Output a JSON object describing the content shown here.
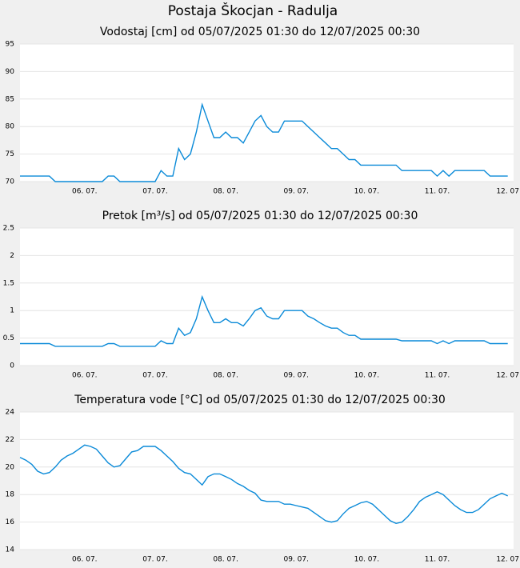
{
  "title": "Postaja Škocjan - Radulja",
  "chart_data": [
    {
      "type": "line",
      "title": "Vodostaj [cm] od 05/07/2025 01:30 do 12/07/2025 00:30",
      "categories": [
        null,
        null,
        null,
        null,
        null,
        null,
        null,
        null,
        null,
        null,
        null,
        "06. 07.",
        null,
        null,
        null,
        null,
        null,
        null,
        null,
        null,
        null,
        null,
        null,
        "07. 07.",
        null,
        null,
        null,
        null,
        null,
        null,
        null,
        null,
        null,
        null,
        null,
        "08. 07.",
        null,
        null,
        null,
        null,
        null,
        null,
        null,
        null,
        null,
        null,
        null,
        "09. 07.",
        null,
        null,
        null,
        null,
        null,
        null,
        null,
        null,
        null,
        null,
        null,
        "10. 07.",
        null,
        null,
        null,
        null,
        null,
        null,
        null,
        null,
        null,
        null,
        null,
        "11. 07.",
        null,
        null,
        null,
        null,
        null,
        null,
        null,
        null,
        null,
        null,
        null,
        "12. 07"
      ],
      "values": [
        71,
        71,
        71,
        71,
        71,
        71,
        70,
        70,
        70,
        70,
        70,
        70,
        70,
        70,
        70,
        71,
        71,
        70,
        70,
        70,
        70,
        70,
        70,
        70,
        72,
        71,
        71,
        76,
        74,
        75,
        79,
        84,
        81,
        78,
        78,
        79,
        78,
        78,
        77,
        79,
        81,
        82,
        80,
        79,
        79,
        81,
        81,
        81,
        81,
        80,
        79,
        78,
        77,
        76,
        76,
        75,
        74,
        74,
        73,
        73,
        73,
        73,
        73,
        73,
        73,
        72,
        72,
        72,
        72,
        72,
        72,
        71,
        72,
        71,
        72,
        72,
        72,
        72,
        72,
        72,
        71,
        71,
        71,
        71
      ],
      "color": "#0a8ad8",
      "ylim": [
        70,
        95
      ],
      "yticks": [
        70,
        75,
        80,
        85,
        90,
        95
      ],
      "grid": true
    },
    {
      "type": "line",
      "title": "Pretok [m³/s] od 05/07/2025 01:30 do 12/07/2025 00:30",
      "categories": [
        null,
        null,
        null,
        null,
        null,
        null,
        null,
        null,
        null,
        null,
        null,
        "06. 07.",
        null,
        null,
        null,
        null,
        null,
        null,
        null,
        null,
        null,
        null,
        null,
        "07. 07.",
        null,
        null,
        null,
        null,
        null,
        null,
        null,
        null,
        null,
        null,
        null,
        "08. 07.",
        null,
        null,
        null,
        null,
        null,
        null,
        null,
        null,
        null,
        null,
        null,
        "09. 07.",
        null,
        null,
        null,
        null,
        null,
        null,
        null,
        null,
        null,
        null,
        null,
        "10. 07.",
        null,
        null,
        null,
        null,
        null,
        null,
        null,
        null,
        null,
        null,
        null,
        "11. 07.",
        null,
        null,
        null,
        null,
        null,
        null,
        null,
        null,
        null,
        null,
        null,
        "12. 07"
      ],
      "values": [
        0.4,
        0.4,
        0.4,
        0.4,
        0.4,
        0.4,
        0.35,
        0.35,
        0.35,
        0.35,
        0.35,
        0.35,
        0.35,
        0.35,
        0.35,
        0.4,
        0.4,
        0.35,
        0.35,
        0.35,
        0.35,
        0.35,
        0.35,
        0.35,
        0.45,
        0.4,
        0.4,
        0.68,
        0.55,
        0.6,
        0.85,
        1.25,
        1.0,
        0.78,
        0.78,
        0.85,
        0.78,
        0.78,
        0.72,
        0.85,
        1.0,
        1.05,
        0.9,
        0.85,
        0.85,
        1.0,
        1.0,
        1.0,
        1.0,
        0.9,
        0.85,
        0.78,
        0.72,
        0.68,
        0.68,
        0.6,
        0.55,
        0.55,
        0.48,
        0.48,
        0.48,
        0.48,
        0.48,
        0.48,
        0.48,
        0.45,
        0.45,
        0.45,
        0.45,
        0.45,
        0.45,
        0.4,
        0.45,
        0.4,
        0.45,
        0.45,
        0.45,
        0.45,
        0.45,
        0.45,
        0.4,
        0.4,
        0.4,
        0.4
      ],
      "color": "#0a8ad8",
      "ylim": [
        0,
        2.5
      ],
      "yticks": [
        0,
        0.5,
        1,
        1.5,
        2,
        2.5
      ],
      "grid": true
    },
    {
      "type": "line",
      "title": "Temperatura vode [°C] od 05/07/2025 01:30 do 12/07/2025 00:30",
      "categories": [
        null,
        null,
        null,
        null,
        null,
        null,
        null,
        null,
        null,
        null,
        null,
        "06. 07.",
        null,
        null,
        null,
        null,
        null,
        null,
        null,
        null,
        null,
        null,
        null,
        "07. 07.",
        null,
        null,
        null,
        null,
        null,
        null,
        null,
        null,
        null,
        null,
        null,
        "08. 07.",
        null,
        null,
        null,
        null,
        null,
        null,
        null,
        null,
        null,
        null,
        null,
        "09. 07.",
        null,
        null,
        null,
        null,
        null,
        null,
        null,
        null,
        null,
        null,
        null,
        "10. 07.",
        null,
        null,
        null,
        null,
        null,
        null,
        null,
        null,
        null,
        null,
        null,
        "11. 07.",
        null,
        null,
        null,
        null,
        null,
        null,
        null,
        null,
        null,
        null,
        null,
        "12. 07"
      ],
      "values": [
        20.7,
        20.5,
        20.2,
        19.7,
        19.5,
        19.6,
        20.0,
        20.5,
        20.8,
        21.0,
        21.3,
        21.6,
        21.5,
        21.3,
        20.8,
        20.3,
        20.0,
        20.1,
        20.6,
        21.1,
        21.2,
        21.5,
        21.5,
        21.5,
        21.2,
        20.8,
        20.4,
        19.9,
        19.6,
        19.5,
        19.1,
        18.7,
        19.3,
        19.5,
        19.5,
        19.3,
        19.1,
        18.8,
        18.6,
        18.3,
        18.1,
        17.6,
        17.5,
        17.5,
        17.5,
        17.3,
        17.3,
        17.2,
        17.1,
        17.0,
        16.7,
        16.4,
        16.1,
        16.0,
        16.1,
        16.6,
        17.0,
        17.2,
        17.4,
        17.5,
        17.3,
        16.9,
        16.5,
        16.1,
        15.9,
        16.0,
        16.4,
        16.9,
        17.5,
        17.8,
        18.0,
        18.2,
        18.0,
        17.6,
        17.2,
        16.9,
        16.7,
        16.7,
        16.9,
        17.3,
        17.7,
        17.9,
        18.1,
        17.9
      ],
      "color": "#0a8ad8",
      "ylim": [
        14,
        24
      ],
      "yticks": [
        14,
        16,
        18,
        20,
        22,
        24
      ],
      "grid": true
    }
  ]
}
